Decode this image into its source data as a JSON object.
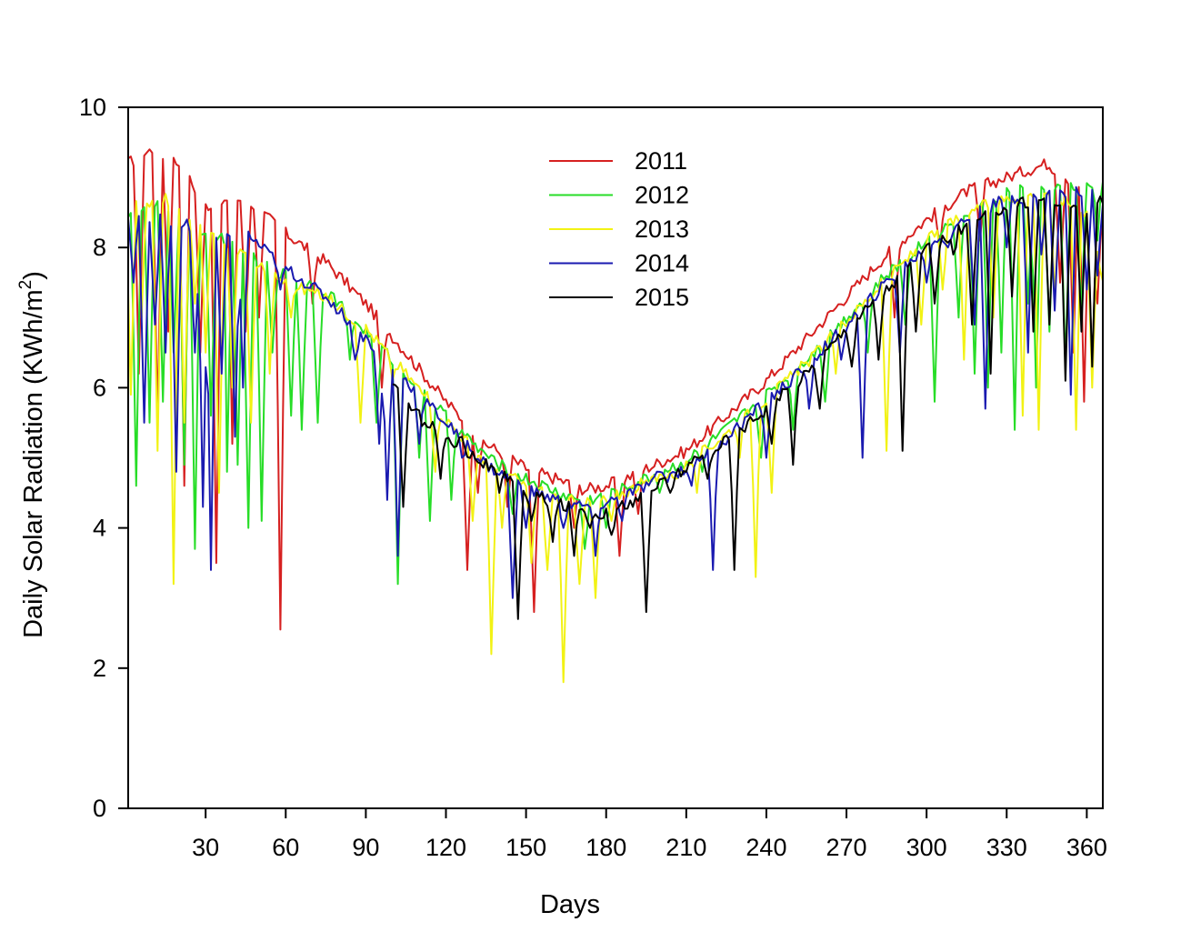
{
  "chart_data": {
    "type": "line",
    "title": "",
    "xlabel": "Days",
    "ylabel_main": "Daily  Solar Radiation (KWh/m",
    "ylabel_sup": "2",
    "ylabel_close": ")",
    "xlim": [
      1,
      366
    ],
    "ylim": [
      0,
      10
    ],
    "xticks": [
      30,
      60,
      90,
      120,
      150,
      180,
      210,
      240,
      270,
      300,
      330,
      360
    ],
    "xtick_labels": [
      "30",
      "60",
      "90",
      "120",
      "150",
      "180",
      "210",
      "240",
      "270",
      "300",
      "330",
      "360"
    ],
    "yticks": [
      0,
      2,
      4,
      6,
      8,
      10
    ],
    "ytick_labels": [
      "0",
      "2",
      "4",
      "6",
      "8",
      "10"
    ],
    "legend_position": "top-center",
    "series": [
      {
        "name": "2011",
        "color": "#d62020",
        "baseline": [
          [
            1,
            9.2
          ],
          [
            10,
            9.4
          ],
          [
            20,
            9.2
          ],
          [
            30,
            8.6
          ],
          [
            45,
            8.7
          ],
          [
            60,
            8.2
          ],
          [
            75,
            7.8
          ],
          [
            90,
            7.2
          ],
          [
            105,
            6.5
          ],
          [
            120,
            5.8
          ],
          [
            135,
            5.2
          ],
          [
            150,
            4.85
          ],
          [
            165,
            4.65
          ],
          [
            172,
            4.55
          ],
          [
            180,
            4.6
          ],
          [
            195,
            4.85
          ],
          [
            210,
            5.1
          ],
          [
            225,
            5.6
          ],
          [
            240,
            6.1
          ],
          [
            255,
            6.7
          ],
          [
            270,
            7.3
          ],
          [
            285,
            7.9
          ],
          [
            300,
            8.4
          ],
          [
            315,
            8.8
          ],
          [
            330,
            9.0
          ],
          [
            345,
            9.2
          ],
          [
            360,
            8.8
          ],
          [
            366,
            8.6
          ]
        ],
        "dips": [
          [
            5,
            6.2
          ],
          [
            12,
            5.5
          ],
          [
            16,
            6.8
          ],
          [
            22,
            4.6
          ],
          [
            28,
            6.5
          ],
          [
            34,
            3.5
          ],
          [
            40,
            5.2
          ],
          [
            45,
            6.8
          ],
          [
            50,
            7.0
          ],
          [
            58,
            2.55
          ],
          [
            70,
            7.2
          ],
          [
            96,
            6.0
          ],
          [
            128,
            3.4
          ],
          [
            132,
            4.5
          ],
          [
            143,
            4.3
          ],
          [
            153,
            2.8
          ],
          [
            168,
            4.0
          ],
          [
            185,
            3.6
          ],
          [
            192,
            4.2
          ],
          [
            288,
            7.0
          ],
          [
            305,
            8.0
          ],
          [
            320,
            8.1
          ],
          [
            350,
            7.5
          ],
          [
            355,
            6.5
          ],
          [
            359,
            5.8
          ],
          [
            362,
            6.2
          ],
          [
            364,
            7.2
          ]
        ]
      },
      {
        "name": "2012",
        "color": "#27dd27",
        "baseline": [
          [
            1,
            8.5
          ],
          [
            15,
            8.6
          ],
          [
            30,
            8.2
          ],
          [
            45,
            7.9
          ],
          [
            60,
            7.6
          ],
          [
            75,
            7.4
          ],
          [
            90,
            6.8
          ],
          [
            105,
            6.2
          ],
          [
            120,
            5.6
          ],
          [
            135,
            5.0
          ],
          [
            150,
            4.7
          ],
          [
            165,
            4.45
          ],
          [
            172,
            4.4
          ],
          [
            180,
            4.45
          ],
          [
            195,
            4.7
          ],
          [
            210,
            4.95
          ],
          [
            225,
            5.4
          ],
          [
            240,
            5.9
          ],
          [
            255,
            6.4
          ],
          [
            270,
            7.0
          ],
          [
            285,
            7.6
          ],
          [
            300,
            8.1
          ],
          [
            315,
            8.5
          ],
          [
            330,
            8.8
          ],
          [
            345,
            8.8
          ],
          [
            360,
            8.9
          ],
          [
            366,
            9.0
          ]
        ],
        "dips": [
          [
            4,
            4.6
          ],
          [
            9,
            5.5
          ],
          [
            14,
            5.8
          ],
          [
            18,
            6.5
          ],
          [
            22,
            4.9
          ],
          [
            26,
            3.7
          ],
          [
            32,
            5.6
          ],
          [
            36,
            8.2
          ],
          [
            38,
            4.8
          ],
          [
            42,
            4.9
          ],
          [
            46,
            4.0
          ],
          [
            51,
            4.1
          ],
          [
            55,
            6.5
          ],
          [
            62,
            5.6
          ],
          [
            66,
            5.4
          ],
          [
            72,
            5.5
          ],
          [
            84,
            6.4
          ],
          [
            94,
            5.5
          ],
          [
            102,
            3.2
          ],
          [
            110,
            5.0
          ],
          [
            114,
            4.1
          ],
          [
            122,
            4.4
          ],
          [
            134,
            5.1
          ],
          [
            145,
            4.2
          ],
          [
            172,
            3.7
          ],
          [
            180,
            4.0
          ],
          [
            200,
            4.5
          ],
          [
            216,
            4.8
          ],
          [
            238,
            5.0
          ],
          [
            250,
            5.4
          ],
          [
            262,
            5.8
          ],
          [
            278,
            6.5
          ],
          [
            292,
            6.9
          ],
          [
            303,
            5.8
          ],
          [
            312,
            7.0
          ],
          [
            318,
            6.2
          ],
          [
            323,
            6.0
          ],
          [
            328,
            6.5
          ],
          [
            333,
            5.4
          ],
          [
            338,
            7.2
          ],
          [
            341,
            6.0
          ],
          [
            346,
            6.8
          ],
          [
            352,
            6.3
          ],
          [
            358,
            7.0
          ],
          [
            364,
            8.1
          ]
        ]
      },
      {
        "name": "2013",
        "color": "#f2f214",
        "baseline": [
          [
            1,
            8.6
          ],
          [
            15,
            8.7
          ],
          [
            30,
            8.2
          ],
          [
            45,
            7.9
          ],
          [
            60,
            7.5
          ],
          [
            75,
            7.3
          ],
          [
            90,
            6.85
          ],
          [
            105,
            6.2
          ],
          [
            120,
            5.55
          ],
          [
            135,
            4.95
          ],
          [
            150,
            4.6
          ],
          [
            165,
            4.4
          ],
          [
            172,
            4.35
          ],
          [
            180,
            4.4
          ],
          [
            195,
            4.65
          ],
          [
            210,
            4.9
          ],
          [
            225,
            5.35
          ],
          [
            240,
            5.85
          ],
          [
            255,
            6.35
          ],
          [
            270,
            6.95
          ],
          [
            285,
            7.55
          ],
          [
            300,
            8.1
          ],
          [
            315,
            8.5
          ],
          [
            330,
            8.7
          ],
          [
            345,
            8.8
          ],
          [
            360,
            8.5
          ],
          [
            366,
            7.6
          ]
        ],
        "dips": [
          [
            2,
            5.9
          ],
          [
            6,
            7.0
          ],
          [
            12,
            5.1
          ],
          [
            18,
            3.2
          ],
          [
            22,
            5.5
          ],
          [
            26,
            7.2
          ],
          [
            30,
            6.5
          ],
          [
            35,
            4.5
          ],
          [
            40,
            6.0
          ],
          [
            47,
            5.5
          ],
          [
            54,
            6.2
          ],
          [
            62,
            7.0
          ],
          [
            88,
            5.5
          ],
          [
            100,
            6.1
          ],
          [
            116,
            4.8
          ],
          [
            130,
            4.1
          ],
          [
            137,
            2.2
          ],
          [
            141,
            4.0
          ],
          [
            152,
            3.5
          ],
          [
            158,
            3.4
          ],
          [
            164,
            1.8
          ],
          [
            170,
            3.2
          ],
          [
            176,
            3.0
          ],
          [
            182,
            4.1
          ],
          [
            196,
            4.6
          ],
          [
            206,
            4.7
          ],
          [
            214,
            4.5
          ],
          [
            230,
            5.0
          ],
          [
            236,
            3.3
          ],
          [
            242,
            4.5
          ],
          [
            266,
            6.2
          ],
          [
            285,
            5.1
          ],
          [
            298,
            6.9
          ],
          [
            306,
            7.4
          ],
          [
            314,
            6.4
          ],
          [
            325,
            7.0
          ],
          [
            336,
            5.6
          ],
          [
            342,
            5.4
          ],
          [
            348,
            7.3
          ],
          [
            356,
            5.4
          ],
          [
            362,
            6.0
          ]
        ]
      },
      {
        "name": "2014",
        "color": "#1a1ab0",
        "baseline": [
          [
            1,
            8.4
          ],
          [
            15,
            8.4
          ],
          [
            30,
            8.0
          ],
          [
            45,
            8.2
          ],
          [
            60,
            7.7
          ],
          [
            75,
            7.3
          ],
          [
            90,
            6.7
          ],
          [
            105,
            6.1
          ],
          [
            120,
            5.5
          ],
          [
            135,
            4.9
          ],
          [
            150,
            4.55
          ],
          [
            165,
            4.35
          ],
          [
            172,
            4.3
          ],
          [
            180,
            4.35
          ],
          [
            195,
            4.6
          ],
          [
            210,
            4.85
          ],
          [
            225,
            5.3
          ],
          [
            240,
            5.8
          ],
          [
            255,
            6.3
          ],
          [
            270,
            6.9
          ],
          [
            285,
            7.5
          ],
          [
            300,
            8.0
          ],
          [
            315,
            8.4
          ],
          [
            330,
            8.7
          ],
          [
            345,
            8.75
          ],
          [
            360,
            8.8
          ],
          [
            366,
            8.7
          ]
        ],
        "dips": [
          [
            3,
            7.5
          ],
          [
            7,
            5.5
          ],
          [
            11,
            6.9
          ],
          [
            15,
            6.5
          ],
          [
            19,
            4.8
          ],
          [
            23,
            8.4
          ],
          [
            26,
            6.5
          ],
          [
            29,
            4.3
          ],
          [
            32,
            3.4
          ],
          [
            36,
            6.2
          ],
          [
            41,
            5.3
          ],
          [
            44,
            6.0
          ],
          [
            58,
            7.4
          ],
          [
            86,
            6.4
          ],
          [
            95,
            5.2
          ],
          [
            98,
            4.4
          ],
          [
            102,
            3.6
          ],
          [
            110,
            5.2
          ],
          [
            126,
            5.0
          ],
          [
            145,
            3.0
          ],
          [
            150,
            4.0
          ],
          [
            164,
            4.0
          ],
          [
            176,
            3.6
          ],
          [
            186,
            4.1
          ],
          [
            200,
            4.8
          ],
          [
            212,
            4.6
          ],
          [
            220,
            3.4
          ],
          [
            224,
            5.2
          ],
          [
            240,
            5.0
          ],
          [
            256,
            5.7
          ],
          [
            268,
            6.4
          ],
          [
            276,
            5.0
          ],
          [
            290,
            6.5
          ],
          [
            300,
            7.5
          ],
          [
            308,
            8.0
          ],
          [
            318,
            6.9
          ],
          [
            322,
            5.7
          ],
          [
            330,
            8.0
          ],
          [
            338,
            6.5
          ],
          [
            343,
            7.9
          ],
          [
            348,
            7.1
          ],
          [
            354,
            5.9
          ],
          [
            360,
            7.4
          ],
          [
            364,
            7.6
          ]
        ]
      },
      {
        "name": "2015",
        "color": "#000000",
        "baseline": [
          [
            100,
            6.0
          ],
          [
            110,
            5.6
          ],
          [
            120,
            5.3
          ],
          [
            135,
            4.9
          ],
          [
            150,
            4.5
          ],
          [
            165,
            4.3
          ],
          [
            172,
            4.25
          ],
          [
            180,
            4.2
          ],
          [
            195,
            4.5
          ],
          [
            210,
            4.85
          ],
          [
            225,
            5.25
          ],
          [
            240,
            5.7
          ],
          [
            255,
            6.2
          ],
          [
            270,
            6.85
          ],
          [
            285,
            7.4
          ],
          [
            300,
            7.95
          ],
          [
            315,
            8.3
          ],
          [
            330,
            8.6
          ],
          [
            345,
            8.7
          ],
          [
            360,
            8.55
          ],
          [
            366,
            8.7
          ]
        ],
        "dips": [
          [
            104,
            4.3
          ],
          [
            112,
            5.5
          ],
          [
            118,
            4.7
          ],
          [
            126,
            5.3
          ],
          [
            140,
            4.5
          ],
          [
            147,
            2.7
          ],
          [
            152,
            4.1
          ],
          [
            160,
            3.8
          ],
          [
            168,
            3.6
          ],
          [
            174,
            4.0
          ],
          [
            182,
            3.9
          ],
          [
            190,
            4.3
          ],
          [
            195,
            2.8
          ],
          [
            204,
            4.5
          ],
          [
            218,
            4.7
          ],
          [
            228,
            3.4
          ],
          [
            242,
            5.2
          ],
          [
            250,
            4.9
          ],
          [
            260,
            5.7
          ],
          [
            272,
            6.3
          ],
          [
            282,
            6.4
          ],
          [
            291,
            5.1
          ],
          [
            296,
            6.8
          ],
          [
            303,
            7.2
          ],
          [
            310,
            7.9
          ],
          [
            317,
            6.9
          ],
          [
            324,
            6.2
          ],
          [
            332,
            7.3
          ],
          [
            340,
            6.8
          ],
          [
            346,
            6.9
          ],
          [
            352,
            6.1
          ],
          [
            358,
            6.8
          ],
          [
            362,
            6.3
          ]
        ]
      }
    ]
  }
}
